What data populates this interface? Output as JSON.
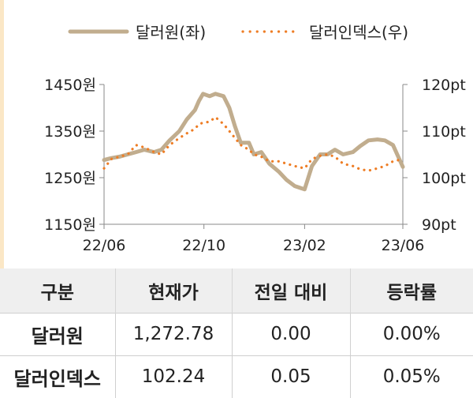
{
  "chart_data": {
    "type": "line",
    "legend": [
      {
        "name": "달러원(좌)",
        "color": "#c1ad8e",
        "style": "solid"
      },
      {
        "name": "달러인덱스(우)",
        "color": "#ee7d25",
        "style": "dotted"
      }
    ],
    "legend_position": "top",
    "x_ticks": [
      "22/06",
      "22/10",
      "23/02",
      "23/06"
    ],
    "y_left_ticks": [
      "1450원",
      "1350원",
      "1250원",
      "1150원"
    ],
    "y_right_ticks": [
      "120pt",
      "110pt",
      "100pt",
      "90pt"
    ],
    "y_left_range": [
      1150,
      1450
    ],
    "y_right_range": [
      90,
      120
    ],
    "x_range": [
      "2022-06-01",
      "2023-06-01"
    ],
    "series": [
      {
        "name": "달러원(좌)",
        "axis": "left",
        "points": [
          [
            "2022-06-01",
            1288
          ],
          [
            "2022-06-10",
            1292
          ],
          [
            "2022-06-20",
            1295
          ],
          [
            "2022-06-30",
            1300
          ],
          [
            "2022-07-10",
            1305
          ],
          [
            "2022-07-20",
            1310
          ],
          [
            "2022-08-01",
            1305
          ],
          [
            "2022-08-10",
            1310
          ],
          [
            "2022-08-20",
            1330
          ],
          [
            "2022-09-01",
            1350
          ],
          [
            "2022-09-10",
            1375
          ],
          [
            "2022-09-20",
            1395
          ],
          [
            "2022-09-25",
            1415
          ],
          [
            "2022-09-30",
            1430
          ],
          [
            "2022-10-08",
            1425
          ],
          [
            "2022-10-15",
            1430
          ],
          [
            "2022-10-25",
            1425
          ],
          [
            "2022-11-01",
            1400
          ],
          [
            "2022-11-08",
            1360
          ],
          [
            "2022-11-15",
            1325
          ],
          [
            "2022-11-25",
            1325
          ],
          [
            "2022-12-01",
            1300
          ],
          [
            "2022-12-10",
            1305
          ],
          [
            "2022-12-20",
            1280
          ],
          [
            "2023-01-01",
            1262
          ],
          [
            "2023-01-10",
            1245
          ],
          [
            "2023-01-20",
            1232
          ],
          [
            "2023-02-01",
            1225
          ],
          [
            "2023-02-10",
            1275
          ],
          [
            "2023-02-20",
            1300
          ],
          [
            "2023-03-01",
            1300
          ],
          [
            "2023-03-10",
            1310
          ],
          [
            "2023-03-20",
            1300
          ],
          [
            "2023-04-01",
            1305
          ],
          [
            "2023-04-10",
            1318
          ],
          [
            "2023-04-20",
            1330
          ],
          [
            "2023-05-01",
            1332
          ],
          [
            "2023-05-10",
            1330
          ],
          [
            "2023-05-20",
            1320
          ],
          [
            "2023-06-01",
            1273
          ]
        ]
      },
      {
        "name": "달러인덱스(우)",
        "axis": "right",
        "points": [
          [
            "2022-06-01",
            102.0
          ],
          [
            "2022-06-10",
            104.0
          ],
          [
            "2022-06-20",
            104.5
          ],
          [
            "2022-06-30",
            105.0
          ],
          [
            "2022-07-10",
            107.0
          ],
          [
            "2022-07-20",
            106.5
          ],
          [
            "2022-08-01",
            105.5
          ],
          [
            "2022-08-10",
            105.0
          ],
          [
            "2022-08-20",
            107.0
          ],
          [
            "2022-09-01",
            108.5
          ],
          [
            "2022-09-10",
            109.5
          ],
          [
            "2022-09-20",
            110.5
          ],
          [
            "2022-09-25",
            111.5
          ],
          [
            "2022-09-30",
            111.8
          ],
          [
            "2022-10-08",
            112.0
          ],
          [
            "2022-10-15",
            113.0
          ],
          [
            "2022-10-25",
            111.5
          ],
          [
            "2022-11-01",
            110.0
          ],
          [
            "2022-11-08",
            108.5
          ],
          [
            "2022-11-15",
            107.0
          ],
          [
            "2022-11-25",
            106.0
          ],
          [
            "2022-12-01",
            105.0
          ],
          [
            "2022-12-10",
            104.5
          ],
          [
            "2022-12-20",
            103.5
          ],
          [
            "2023-01-01",
            103.5
          ],
          [
            "2023-01-10",
            103.0
          ],
          [
            "2023-01-20",
            102.5
          ],
          [
            "2023-02-01",
            102.0
          ],
          [
            "2023-02-10",
            104.0
          ],
          [
            "2023-02-20",
            104.7
          ],
          [
            "2023-03-01",
            105.0
          ],
          [
            "2023-03-10",
            104.5
          ],
          [
            "2023-03-20",
            103.0
          ],
          [
            "2023-04-01",
            102.5
          ],
          [
            "2023-04-10",
            101.8
          ],
          [
            "2023-04-20",
            101.5
          ],
          [
            "2023-05-01",
            102.0
          ],
          [
            "2023-05-10",
            102.5
          ],
          [
            "2023-05-20",
            103.5
          ],
          [
            "2023-06-01",
            104.0
          ]
        ]
      }
    ],
    "grid": false
  },
  "table": {
    "headers": [
      "구분",
      "현재가",
      "전일 대비",
      "등락률"
    ],
    "rows": [
      [
        "달러원",
        "1,272.78",
        "0.00",
        "0.00%"
      ],
      [
        "달러인덱스",
        "102.24",
        "0.05",
        "0.05%"
      ]
    ]
  }
}
